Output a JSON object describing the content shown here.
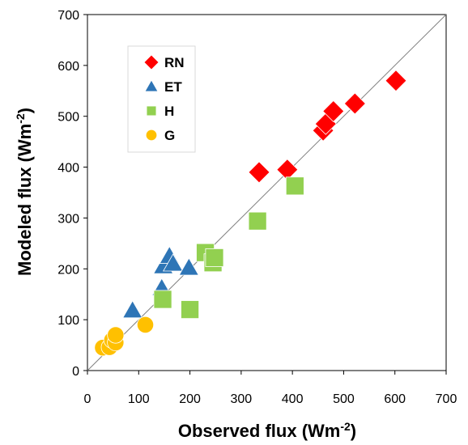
{
  "chart_data": {
    "type": "scatter",
    "title": "",
    "xlabel": "Observed flux (Wm",
    "xlabel_sup": "-2",
    "xlabel_end": ")",
    "ylabel": "Modeled flux (Wm",
    "ylabel_sup": "-2",
    "ylabel_end": ")",
    "xlim": [
      0,
      700
    ],
    "ylim": [
      0,
      700
    ],
    "xticks": [
      "0",
      "100",
      "200",
      "300",
      "400",
      "500",
      "600",
      "700"
    ],
    "yticks": [
      "0",
      "100",
      "200",
      "300",
      "400",
      "500",
      "600",
      "700"
    ],
    "grid": false,
    "reference_line": "1:1",
    "legend_placement": "top-left",
    "series": [
      {
        "name": "RN",
        "marker": "diamond",
        "color": "#ff0000",
        "points": [
          [
            335,
            390
          ],
          [
            390,
            395
          ],
          [
            460,
            472
          ],
          [
            465,
            485
          ],
          [
            480,
            510
          ],
          [
            522,
            525
          ],
          [
            602,
            570
          ]
        ]
      },
      {
        "name": "ET",
        "marker": "triangle",
        "color": "#2e75b6",
        "points": [
          [
            88,
            118
          ],
          [
            145,
            162
          ],
          [
            148,
            205
          ],
          [
            160,
            225
          ],
          [
            167,
            210
          ],
          [
            198,
            202
          ]
        ]
      },
      {
        "name": "H",
        "marker": "square",
        "color": "#92d050",
        "points": [
          [
            147,
            140
          ],
          [
            200,
            120
          ],
          [
            230,
            232
          ],
          [
            245,
            212
          ],
          [
            248,
            222
          ],
          [
            332,
            294
          ],
          [
            405,
            363
          ]
        ]
      },
      {
        "name": "G",
        "marker": "circle",
        "color": "#ffc000",
        "points": [
          [
            30,
            45
          ],
          [
            43,
            46
          ],
          [
            48,
            60
          ],
          [
            55,
            55
          ],
          [
            55,
            70
          ],
          [
            113,
            90
          ]
        ]
      }
    ]
  }
}
